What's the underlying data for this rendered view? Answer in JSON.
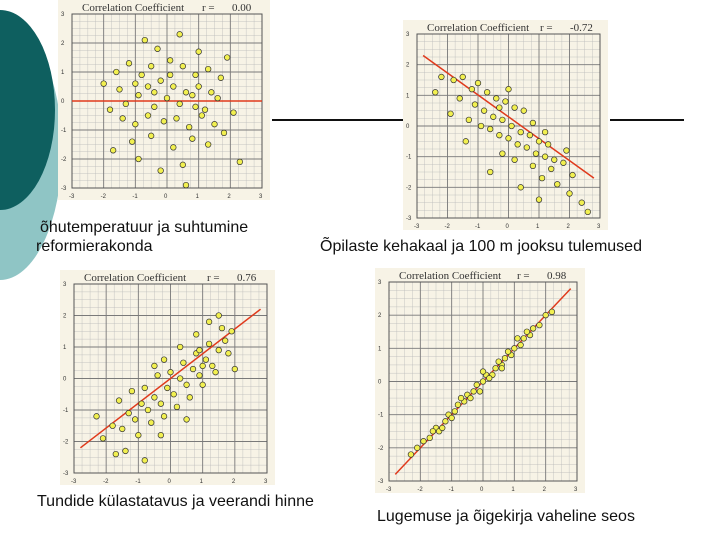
{
  "colors": {
    "accent_dark": "#0e5f5f",
    "accent_light": "#8fc5c5",
    "fit_line": "#e03a1c",
    "point_fill": "#f2f050",
    "grid": "#b9b9b9",
    "plot_bg": "#f7f3e6"
  },
  "captions": {
    "top_left_line1": "õhutemperatuur ja suhtumine",
    "top_left_line2": "reformierakonda",
    "top_right": "Õpilaste kehakaal ja 100 m jooksu tulemused",
    "bottom_left": "Tundide külastatavus ja veerandi hinne",
    "bottom_right": "Lugemuse ja õigekirja vaheline seos"
  },
  "chart_data": [
    {
      "type": "scatter",
      "title": "Correlation Coefficient",
      "r_label": "r =",
      "r_value": "0.00",
      "xlim": [
        -3,
        3
      ],
      "ylim": [
        -3,
        3
      ],
      "yticks": [
        "3",
        "2",
        "1",
        "0",
        "-1",
        "-2",
        "-3"
      ],
      "xticks": [
        "-3",
        "-2",
        "-1",
        "0",
        "1",
        "2",
        "3"
      ],
      "fit_line": [
        [
          -3,
          0
        ],
        [
          3,
          0
        ]
      ],
      "points": [
        [
          -1.2,
          1.3
        ],
        [
          -0.8,
          0.9
        ],
        [
          -0.5,
          1.2
        ],
        [
          0.1,
          1.4
        ],
        [
          0.5,
          1.2
        ],
        [
          0.9,
          0.9
        ],
        [
          1.3,
          1.1
        ],
        [
          1.7,
          0.8
        ],
        [
          -1.5,
          0.4
        ],
        [
          -1.0,
          0.6
        ],
        [
          -0.6,
          0.5
        ],
        [
          -0.2,
          0.7
        ],
        [
          0.2,
          0.5
        ],
        [
          0.6,
          0.3
        ],
        [
          1.0,
          0.5
        ],
        [
          1.4,
          0.3
        ],
        [
          -1.3,
          -0.1
        ],
        [
          -0.9,
          0.2
        ],
        [
          -0.4,
          -0.2
        ],
        [
          0.0,
          0.1
        ],
        [
          0.4,
          -0.1
        ],
        [
          0.8,
          0.2
        ],
        [
          1.2,
          -0.3
        ],
        [
          1.6,
          0.1
        ],
        [
          -1.4,
          -0.6
        ],
        [
          -1.0,
          -0.8
        ],
        [
          -0.6,
          -0.5
        ],
        [
          -0.1,
          -0.7
        ],
        [
          0.3,
          -0.6
        ],
        [
          0.7,
          -0.9
        ],
        [
          1.1,
          -0.5
        ],
        [
          1.5,
          -0.8
        ],
        [
          -1.1,
          -1.4
        ],
        [
          -0.5,
          -1.2
        ],
        [
          0.2,
          -1.6
        ],
        [
          0.8,
          -1.3
        ],
        [
          1.3,
          -1.5
        ],
        [
          -1.7,
          -1.7
        ],
        [
          0.5,
          -2.2
        ],
        [
          -0.2,
          -2.4
        ],
        [
          2.3,
          -2.1
        ],
        [
          -0.7,
          2.1
        ],
        [
          0.4,
          2.3
        ],
        [
          1.9,
          1.5
        ],
        [
          -2.0,
          0.6
        ],
        [
          2.1,
          -0.4
        ],
        [
          -0.3,
          1.8
        ],
        [
          1.0,
          1.7
        ],
        [
          -1.6,
          1.0
        ],
        [
          0.6,
          -2.9
        ],
        [
          -0.9,
          -2.0
        ],
        [
          1.8,
          -1.1
        ],
        [
          0.1,
          0.9
        ],
        [
          -0.4,
          0.3
        ],
        [
          0.9,
          -0.2
        ],
        [
          -1.8,
          -0.3
        ]
      ]
    },
    {
      "type": "scatter",
      "title": "Correlation Coefficient",
      "r_label": "r =",
      "r_value": "-0.72",
      "xlim": [
        -3,
        3
      ],
      "ylim": [
        -3,
        3
      ],
      "yticks": [
        "3",
        "2",
        "1",
        "0",
        "-1",
        "-2",
        "-3"
      ],
      "xticks": [
        "-3",
        "-2",
        "-1",
        "0",
        "1",
        "2",
        "3"
      ],
      "fit_line": [
        [
          -2.8,
          2.3
        ],
        [
          2.8,
          -1.7
        ]
      ],
      "points": [
        [
          -2.2,
          1.6
        ],
        [
          -1.8,
          1.5
        ],
        [
          -1.5,
          1.6
        ],
        [
          -1.2,
          1.2
        ],
        [
          -1.0,
          1.4
        ],
        [
          -0.7,
          1.1
        ],
        [
          -0.4,
          0.9
        ],
        [
          -0.1,
          0.8
        ],
        [
          0.2,
          0.6
        ],
        [
          0.5,
          0.5
        ],
        [
          -1.6,
          0.9
        ],
        [
          -1.1,
          0.7
        ],
        [
          -0.8,
          0.5
        ],
        [
          -0.5,
          0.3
        ],
        [
          -0.2,
          0.2
        ],
        [
          0.1,
          0.0
        ],
        [
          0.4,
          -0.2
        ],
        [
          0.7,
          -0.3
        ],
        [
          1.0,
          -0.5
        ],
        [
          1.3,
          -0.6
        ],
        [
          -1.3,
          0.2
        ],
        [
          -0.9,
          0.0
        ],
        [
          -0.6,
          -0.1
        ],
        [
          -0.3,
          -0.3
        ],
        [
          0.0,
          -0.4
        ],
        [
          0.3,
          -0.6
        ],
        [
          0.6,
          -0.7
        ],
        [
          0.9,
          -0.9
        ],
        [
          1.2,
          -1.0
        ],
        [
          1.5,
          -1.1
        ],
        [
          -0.2,
          -0.9
        ],
        [
          0.2,
          -1.1
        ],
        [
          0.8,
          -1.3
        ],
        [
          1.4,
          -1.4
        ],
        [
          1.8,
          -1.2
        ],
        [
          2.1,
          -1.6
        ],
        [
          1.1,
          -1.7
        ],
        [
          1.6,
          -1.9
        ],
        [
          2.0,
          -2.2
        ],
        [
          2.4,
          -2.5
        ],
        [
          -0.6,
          -1.5
        ],
        [
          0.4,
          -2.0
        ],
        [
          -1.9,
          0.4
        ],
        [
          -2.4,
          1.1
        ],
        [
          1.9,
          -0.8
        ],
        [
          0.0,
          1.2
        ],
        [
          -0.3,
          0.6
        ],
        [
          0.8,
          0.1
        ],
        [
          1.2,
          -0.2
        ],
        [
          -1.4,
          -0.5
        ],
        [
          2.6,
          -2.8
        ],
        [
          1.0,
          -2.4
        ]
      ]
    },
    {
      "type": "scatter",
      "title": "Correlation Coefficient",
      "r_label": "r =",
      "r_value": "0.76",
      "xlim": [
        -3,
        3
      ],
      "ylim": [
        -3,
        3
      ],
      "yticks": [
        "3",
        "2",
        "1",
        "0",
        "-1",
        "-2",
        "-3"
      ],
      "xticks": [
        "-3",
        "-2",
        "-1",
        "0",
        "1",
        "2",
        "3"
      ],
      "fit_line": [
        [
          -2.8,
          -2.2
        ],
        [
          2.8,
          2.2
        ]
      ],
      "points": [
        [
          -2.1,
          -1.9
        ],
        [
          -1.8,
          -1.5
        ],
        [
          -1.5,
          -1.6
        ],
        [
          -1.3,
          -1.1
        ],
        [
          -1.1,
          -1.3
        ],
        [
          -0.9,
          -0.8
        ],
        [
          -0.7,
          -1.0
        ],
        [
          -0.5,
          -0.6
        ],
        [
          -0.3,
          -0.8
        ],
        [
          -0.1,
          -0.3
        ],
        [
          0.1,
          -0.5
        ],
        [
          0.3,
          0.0
        ],
        [
          0.5,
          -0.2
        ],
        [
          0.7,
          0.3
        ],
        [
          0.9,
          0.1
        ],
        [
          1.1,
          0.6
        ],
        [
          1.3,
          0.4
        ],
        [
          1.5,
          0.9
        ],
        [
          1.7,
          1.2
        ],
        [
          1.9,
          1.5
        ],
        [
          -1.6,
          -0.7
        ],
        [
          -1.2,
          -0.4
        ],
        [
          -0.8,
          -0.3
        ],
        [
          -0.4,
          0.1
        ],
        [
          0.0,
          0.2
        ],
        [
          0.4,
          0.5
        ],
        [
          0.8,
          0.8
        ],
        [
          1.2,
          1.1
        ],
        [
          1.6,
          1.6
        ],
        [
          -1.0,
          -1.8
        ],
        [
          -0.6,
          -1.4
        ],
        [
          -0.2,
          -1.2
        ],
        [
          0.2,
          -0.9
        ],
        [
          0.6,
          -0.6
        ],
        [
          1.0,
          -0.2
        ],
        [
          1.4,
          0.2
        ],
        [
          -1.4,
          -2.3
        ],
        [
          -0.8,
          -2.6
        ],
        [
          -1.7,
          -2.4
        ],
        [
          0.3,
          1.0
        ],
        [
          -0.2,
          0.6
        ],
        [
          0.8,
          1.4
        ],
        [
          1.2,
          1.8
        ],
        [
          1.5,
          2.0
        ],
        [
          -0.5,
          0.4
        ],
        [
          2.0,
          0.3
        ],
        [
          1.8,
          0.8
        ],
        [
          -0.3,
          -1.8
        ],
        [
          0.5,
          -1.3
        ],
        [
          -2.3,
          -1.2
        ],
        [
          0.9,
          0.9
        ],
        [
          1.0,
          0.4
        ]
      ]
    },
    {
      "type": "scatter",
      "title": "Correlation Coefficient",
      "r_label": "r =",
      "r_value": "0.98",
      "xlim": [
        -3,
        3
      ],
      "ylim": [
        -3,
        3
      ],
      "yticks": [
        "3",
        "2",
        "1",
        "0",
        "-1",
        "-2",
        "-3"
      ],
      "xticks": [
        "-3",
        "-2",
        "-1",
        "0",
        "1",
        "2",
        "3"
      ],
      "fit_line": [
        [
          -2.8,
          -2.8
        ],
        [
          2.8,
          2.8
        ]
      ],
      "points": [
        [
          -2.1,
          -2.0
        ],
        [
          -1.9,
          -1.8
        ],
        [
          -1.7,
          -1.7
        ],
        [
          -1.5,
          -1.4
        ],
        [
          -1.4,
          -1.5
        ],
        [
          -1.2,
          -1.2
        ],
        [
          -1.1,
          -1.0
        ],
        [
          -0.9,
          -0.9
        ],
        [
          -0.8,
          -0.7
        ],
        [
          -0.6,
          -0.6
        ],
        [
          -0.5,
          -0.4
        ],
        [
          -0.3,
          -0.3
        ],
        [
          -0.2,
          -0.1
        ],
        [
          0.0,
          0.0
        ],
        [
          0.1,
          0.2
        ],
        [
          0.3,
          0.2
        ],
        [
          0.4,
          0.4
        ],
        [
          0.6,
          0.5
        ],
        [
          0.7,
          0.7
        ],
        [
          0.9,
          0.8
        ],
        [
          1.0,
          1.0
        ],
        [
          1.2,
          1.1
        ],
        [
          1.3,
          1.3
        ],
        [
          1.5,
          1.4
        ],
        [
          1.6,
          1.6
        ],
        [
          1.8,
          1.7
        ],
        [
          2.0,
          2.0
        ],
        [
          -1.6,
          -1.5
        ],
        [
          -1.0,
          -1.1
        ],
        [
          -0.4,
          -0.5
        ],
        [
          0.2,
          0.1
        ],
        [
          0.8,
          0.9
        ],
        [
          1.4,
          1.5
        ],
        [
          -0.7,
          -0.5
        ],
        [
          0.5,
          0.6
        ],
        [
          1.1,
          1.3
        ],
        [
          -1.3,
          -1.4
        ],
        [
          2.2,
          2.1
        ],
        [
          -2.3,
          -2.2
        ],
        [
          0.0,
          0.3
        ],
        [
          -0.1,
          -0.3
        ],
        [
          0.6,
          0.4
        ]
      ]
    }
  ]
}
